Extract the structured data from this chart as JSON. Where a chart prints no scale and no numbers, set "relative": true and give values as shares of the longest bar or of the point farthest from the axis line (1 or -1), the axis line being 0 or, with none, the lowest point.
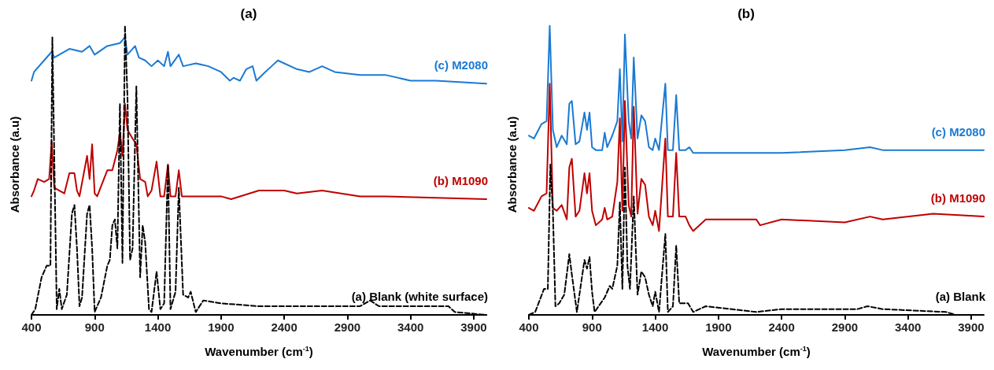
{
  "chart_data": [
    {
      "type": "line",
      "title": "(a)",
      "xlabel": "Wavenumber (cm$^{-1}$)",
      "ylabel": "Absorbance (a.u)",
      "relative": true,
      "xlim": [
        400,
        4000
      ],
      "xticks": [
        400,
        900,
        1400,
        1900,
        2400,
        2900,
        3400,
        3900
      ],
      "tick_labels": "x",
      "grid": false,
      "legend": false,
      "marker": "none",
      "series": [
        {
          "name": "(c) M2080",
          "color": "#1a7ad4",
          "line_style": "solid",
          "x": [
            400,
            420,
            500,
            560,
            580,
            700,
            800,
            860,
            900,
            1000,
            1100,
            1140,
            1160,
            1220,
            1250,
            1300,
            1350,
            1400,
            1450,
            1480,
            1500,
            1566,
            1600,
            1700,
            1800,
            1900,
            1970,
            2000,
            2050,
            2100,
            2150,
            2180,
            2250,
            2300,
            2350,
            2500,
            2600,
            2700,
            2800,
            3000,
            3200,
            3400,
            3600,
            4000
          ],
          "values": [
            0.81,
            0.84,
            0.88,
            0.91,
            0.89,
            0.92,
            0.91,
            0.93,
            0.9,
            0.93,
            0.94,
            0.96,
            0.9,
            0.93,
            0.89,
            0.88,
            0.86,
            0.88,
            0.86,
            0.91,
            0.86,
            0.9,
            0.86,
            0.87,
            0.86,
            0.84,
            0.81,
            0.82,
            0.81,
            0.85,
            0.86,
            0.81,
            0.84,
            0.86,
            0.88,
            0.85,
            0.84,
            0.86,
            0.84,
            0.83,
            0.83,
            0.81,
            0.81,
            0.8
          ]
        },
        {
          "name": "(b) M1090",
          "color": "#c00000",
          "line_style": "solid",
          "x": [
            400,
            420,
            450,
            500,
            540,
            560,
            580,
            620,
            660,
            700,
            740,
            760,
            780,
            840,
            860,
            880,
            900,
            920,
            1000,
            1040,
            1080,
            1100,
            1120,
            1140,
            1160,
            1200,
            1230,
            1260,
            1300,
            1320,
            1350,
            1390,
            1420,
            1450,
            1480,
            1500,
            1540,
            1566,
            1590,
            1900,
            1980,
            2200,
            2400,
            2500,
            2700,
            3000,
            3200,
            4000
          ],
          "values": [
            0.41,
            0.43,
            0.47,
            0.46,
            0.47,
            0.6,
            0.44,
            0.43,
            0.42,
            0.49,
            0.49,
            0.43,
            0.41,
            0.55,
            0.47,
            0.59,
            0.42,
            0.41,
            0.5,
            0.5,
            0.57,
            0.63,
            0.55,
            0.73,
            0.64,
            0.61,
            0.59,
            0.47,
            0.46,
            0.41,
            0.43,
            0.53,
            0.41,
            0.41,
            0.52,
            0.41,
            0.41,
            0.5,
            0.41,
            0.41,
            0.4,
            0.43,
            0.43,
            0.42,
            0.43,
            0.41,
            0.41,
            0.4
          ]
        },
        {
          "name": "(a) Blank (white surface)",
          "color": "#000000",
          "line_style": "dashed",
          "x": [
            400,
            430,
            480,
            520,
            550,
            565,
            600,
            620,
            640,
            680,
            720,
            740,
            760,
            780,
            800,
            840,
            860,
            880,
            900,
            950,
            1000,
            1020,
            1040,
            1060,
            1080,
            1100,
            1120,
            1140,
            1160,
            1180,
            1200,
            1230,
            1260,
            1280,
            1300,
            1330,
            1350,
            1390,
            1420,
            1450,
            1480,
            1500,
            1540,
            1566,
            1600,
            1640,
            1660,
            1700,
            1760,
            1900,
            2200,
            2400,
            2700,
            3000,
            3080,
            3150,
            3700,
            3750,
            4000
          ],
          "values": [
            0,
            0.02,
            0.13,
            0.17,
            0.17,
            0.96,
            0.02,
            0.09,
            0.02,
            0.07,
            0.35,
            0.38,
            0.23,
            0.03,
            0.06,
            0.35,
            0.38,
            0.23,
            0.01,
            0.06,
            0.17,
            0.19,
            0.31,
            0.33,
            0.23,
            0.73,
            0.18,
            1.0,
            0.75,
            0.19,
            0.23,
            0.79,
            0.13,
            0.31,
            0.25,
            0.02,
            0.01,
            0.15,
            0.02,
            0.04,
            0.52,
            0.02,
            0.08,
            0.44,
            0.07,
            0.06,
            0.08,
            0.01,
            0.05,
            0.04,
            0.03,
            0.03,
            0.03,
            0.03,
            0.05,
            0.03,
            0.03,
            0.01,
            0
          ]
        }
      ]
    },
    {
      "type": "line",
      "title": "(b)",
      "xlabel": "Wavenumber (cm$^{-1}$)",
      "ylabel": "Absorbance (a.u)",
      "relative": true,
      "xlim": [
        400,
        4000
      ],
      "xticks": [
        400,
        900,
        1400,
        1900,
        2400,
        2900,
        3400,
        3900
      ],
      "tick_labels": "x",
      "grid": false,
      "legend": false,
      "marker": "none",
      "series": [
        {
          "name": "(c) M2080",
          "color": "#1a7ad4",
          "line_style": "solid",
          "x": [
            400,
            440,
            500,
            540,
            565,
            590,
            620,
            660,
            700,
            720,
            740,
            770,
            800,
            840,
            860,
            880,
            900,
            930,
            980,
            1000,
            1020,
            1060,
            1100,
            1120,
            1140,
            1160,
            1190,
            1210,
            1230,
            1260,
            1290,
            1320,
            1350,
            1380,
            1400,
            1430,
            1480,
            1500,
            1540,
            1566,
            1590,
            1640,
            1670,
            1700,
            1800,
            2200,
            2230,
            2400,
            2900,
            3100,
            3200,
            3600,
            4000
          ],
          "values": [
            0.62,
            0.61,
            0.66,
            0.67,
            1.0,
            0.64,
            0.58,
            0.62,
            0.59,
            0.73,
            0.74,
            0.59,
            0.6,
            0.7,
            0.64,
            0.7,
            0.58,
            0.57,
            0.57,
            0.63,
            0.58,
            0.62,
            0.67,
            0.85,
            0.6,
            0.97,
            0.67,
            0.61,
            0.89,
            0.61,
            0.69,
            0.67,
            0.58,
            0.57,
            0.61,
            0.57,
            0.8,
            0.57,
            0.57,
            0.76,
            0.57,
            0.57,
            0.58,
            0.56,
            0.56,
            0.56,
            0.56,
            0.56,
            0.57,
            0.58,
            0.57,
            0.57,
            0.57
          ]
        },
        {
          "name": "(b) M1090",
          "color": "#c00000",
          "line_style": "solid",
          "x": [
            400,
            440,
            500,
            540,
            565,
            590,
            620,
            660,
            700,
            720,
            740,
            770,
            800,
            840,
            860,
            880,
            900,
            930,
            980,
            1000,
            1020,
            1060,
            1100,
            1120,
            1140,
            1160,
            1190,
            1210,
            1230,
            1260,
            1290,
            1320,
            1350,
            1380,
            1400,
            1430,
            1480,
            1500,
            1540,
            1566,
            1590,
            1640,
            1670,
            1700,
            1800,
            2200,
            2230,
            2400,
            2900,
            3100,
            3200,
            3600,
            4000
          ],
          "values": [
            0.37,
            0.36,
            0.41,
            0.42,
            0.8,
            0.37,
            0.36,
            0.38,
            0.33,
            0.51,
            0.54,
            0.34,
            0.36,
            0.49,
            0.42,
            0.49,
            0.36,
            0.31,
            0.33,
            0.37,
            0.33,
            0.34,
            0.46,
            0.68,
            0.36,
            0.74,
            0.38,
            0.34,
            0.72,
            0.35,
            0.47,
            0.45,
            0.34,
            0.31,
            0.36,
            0.29,
            0.61,
            0.34,
            0.34,
            0.56,
            0.34,
            0.34,
            0.31,
            0.29,
            0.33,
            0.33,
            0.31,
            0.33,
            0.32,
            0.34,
            0.33,
            0.35,
            0.34
          ]
        },
        {
          "name": "(a) Blank",
          "color": "#000000",
          "line_style": "dashed",
          "x": [
            400,
            450,
            520,
            550,
            570,
            590,
            610,
            640,
            680,
            720,
            740,
            780,
            840,
            860,
            880,
            900,
            920,
            1000,
            1040,
            1060,
            1100,
            1120,
            1140,
            1160,
            1180,
            1200,
            1230,
            1260,
            1290,
            1320,
            1350,
            1380,
            1400,
            1430,
            1480,
            1500,
            1540,
            1566,
            1590,
            1640,
            1660,
            1700,
            1800,
            2200,
            2400,
            3000,
            3080,
            3200,
            3700,
            3780,
            4000
          ],
          "values": [
            0,
            0.01,
            0.09,
            0.09,
            0.52,
            0.36,
            0.03,
            0.04,
            0.07,
            0.21,
            0.14,
            0.01,
            0.19,
            0.16,
            0.2,
            0.08,
            0.01,
            0.06,
            0.1,
            0.09,
            0.17,
            0.39,
            0.09,
            0.51,
            0.17,
            0.09,
            0.41,
            0.07,
            0.15,
            0.13,
            0.07,
            0.03,
            0.08,
            0.01,
            0.28,
            0.01,
            0.03,
            0.24,
            0.04,
            0.04,
            0.04,
            0.01,
            0.03,
            0.01,
            0.02,
            0.02,
            0.03,
            0.02,
            0.01,
            0.0,
            0
          ]
        }
      ]
    }
  ]
}
